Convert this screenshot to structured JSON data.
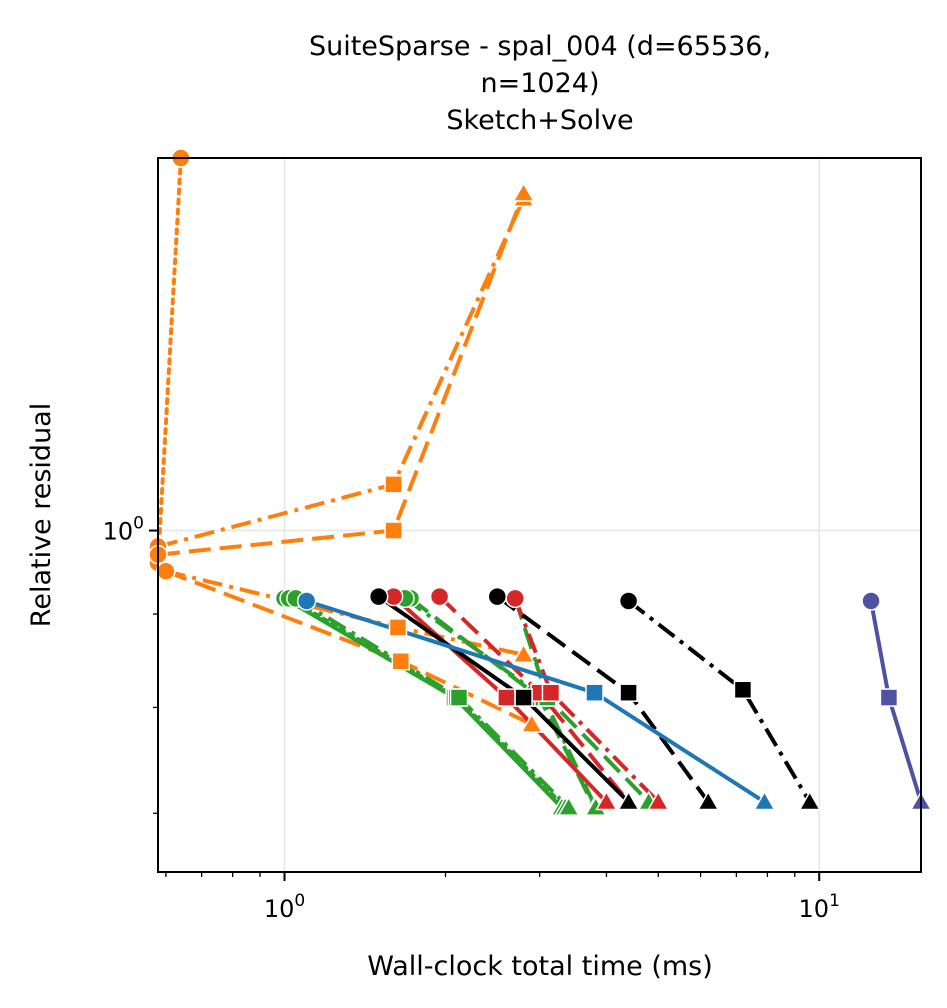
{
  "chart_data": {
    "type": "line",
    "title_lines": [
      "SuiteSparse - spal_004 (d=65536,",
      "n=1024)",
      "Sketch+Solve"
    ],
    "xlabel": "Wall-clock total time (ms)",
    "ylabel": "Relative residual",
    "x_scale": "log",
    "y_scale": "log",
    "xlim": [
      0.58,
      15.5
    ],
    "ylim": [
      0.65,
      1.6
    ],
    "xticks": [
      {
        "value": 1,
        "base": "10",
        "exp": "0"
      },
      {
        "value": 10,
        "base": "10",
        "exp": "1"
      }
    ],
    "yticks": [
      {
        "value": 1,
        "base": "10",
        "exp": "0"
      }
    ],
    "grid": true,
    "legend": "none",
    "colors": {
      "orange": "#ff7f0e",
      "green": "#2ca02c",
      "red": "#d62728",
      "black": "#000000",
      "blue": "#1f77b4",
      "purple": "#4e52a0"
    },
    "series": [
      {
        "color": "#ff7f0e",
        "dash": "dot",
        "points": [
          [
            0.58,
            0.96
          ],
          [
            0.64,
            1.6
          ]
        ],
        "markers": [
          "circle",
          "circle"
        ]
      },
      {
        "color": "#ff7f0e",
        "dash": "dashdot",
        "points": [
          [
            0.58,
            0.98
          ],
          [
            1.6,
            1.06
          ],
          [
            2.8,
            1.52
          ]
        ],
        "markers": [
          "circle",
          "square",
          "triangle"
        ]
      },
      {
        "color": "#ff7f0e",
        "dash": "dash",
        "points": [
          [
            0.58,
            0.97
          ],
          [
            1.6,
            1.0
          ],
          [
            2.8,
            1.53
          ]
        ],
        "markers": [
          "circle",
          "square",
          "triangle"
        ]
      },
      {
        "color": "#ff7f0e",
        "dash": "dashdot",
        "points": [
          [
            0.6,
            0.95
          ],
          [
            1.63,
            0.885
          ],
          [
            2.8,
            0.855
          ]
        ],
        "markers": [
          "circle",
          "square",
          "triangle"
        ]
      },
      {
        "color": "#ff7f0e",
        "dash": "dash",
        "points": [
          [
            0.6,
            0.95
          ],
          [
            1.65,
            0.848
          ],
          [
            2.9,
            0.783
          ]
        ],
        "markers": [
          "circle",
          "square",
          "triangle"
        ]
      },
      {
        "color": "#2ca02c",
        "dash": "solid",
        "points": [
          [
            1.0,
            0.918
          ],
          [
            2.08,
            0.81
          ],
          [
            3.3,
            0.705
          ]
        ],
        "markers": [
          "circle",
          "square",
          "triangle"
        ]
      },
      {
        "color": "#2ca02c",
        "dash": "dot",
        "points": [
          [
            1.02,
            0.918
          ],
          [
            2.1,
            0.81
          ],
          [
            3.35,
            0.705
          ]
        ],
        "markers": [
          "circle",
          "square",
          "triangle"
        ]
      },
      {
        "color": "#2ca02c",
        "dash": "dashdot",
        "points": [
          [
            1.05,
            0.918
          ],
          [
            2.12,
            0.81
          ],
          [
            3.4,
            0.705
          ]
        ],
        "markers": [
          "circle",
          "square",
          "triangle"
        ]
      },
      {
        "color": "#2ca02c",
        "dash": "dash",
        "points": [
          [
            1.72,
            0.918
          ],
          [
            3.0,
            0.81
          ],
          [
            3.8,
            0.705
          ]
        ],
        "markers": [
          "circle",
          "square",
          "triangle"
        ]
      },
      {
        "color": "#2ca02c",
        "dash": "dashdot",
        "points": [
          [
            1.68,
            0.918
          ],
          [
            3.05,
            0.81
          ],
          [
            3.82,
            0.705
          ]
        ],
        "markers": [
          "circle",
          "square",
          "triangle"
        ]
      },
      {
        "color": "#2ca02c",
        "dash": "dash",
        "points": [
          [
            2.7,
            0.918
          ],
          [
            3.1,
            0.81
          ],
          [
            4.8,
            0.71
          ]
        ],
        "markers": [
          "circle",
          "square",
          "triangle"
        ]
      },
      {
        "color": "#d62728",
        "dash": "solid",
        "points": [
          [
            1.6,
            0.92
          ],
          [
            2.6,
            0.81
          ],
          [
            4.0,
            0.71
          ]
        ],
        "markers": [
          "circle",
          "square",
          "triangle"
        ]
      },
      {
        "color": "#d62728",
        "dash": "dash",
        "points": [
          [
            1.95,
            0.92
          ],
          [
            3.0,
            0.815
          ],
          [
            4.4,
            0.71
          ]
        ],
        "markers": [
          "circle",
          "square",
          "triangle"
        ]
      },
      {
        "color": "#d62728",
        "dash": "dashdot",
        "points": [
          [
            2.7,
            0.918
          ],
          [
            3.15,
            0.815
          ],
          [
            5.0,
            0.71
          ]
        ],
        "markers": [
          "circle",
          "square",
          "triangle"
        ]
      },
      {
        "color": "#000000",
        "dash": "solid",
        "points": [
          [
            1.5,
            0.92
          ],
          [
            2.8,
            0.81
          ],
          [
            4.4,
            0.71
          ]
        ],
        "markers": [
          "circle",
          "square",
          "triangle"
        ]
      },
      {
        "color": "#000000",
        "dash": "dash",
        "points": [
          [
            2.5,
            0.92
          ],
          [
            4.4,
            0.815
          ],
          [
            6.2,
            0.71
          ]
        ],
        "markers": [
          "circle",
          "square",
          "triangle"
        ]
      },
      {
        "color": "#000000",
        "dash": "dashdot",
        "points": [
          [
            4.4,
            0.915
          ],
          [
            7.2,
            0.818
          ],
          [
            9.6,
            0.71
          ]
        ],
        "markers": [
          "circle",
          "square",
          "triangle"
        ]
      },
      {
        "color": "#1f77b4",
        "dash": "solid",
        "points": [
          [
            1.1,
            0.915
          ],
          [
            3.8,
            0.815
          ],
          [
            7.9,
            0.71
          ]
        ],
        "markers": [
          "circle",
          "square",
          "triangle"
        ]
      },
      {
        "color": "#4e52a0",
        "dash": "solid",
        "points": [
          [
            12.5,
            0.915
          ],
          [
            13.5,
            0.81
          ],
          [
            15.5,
            0.71
          ]
        ],
        "markers": [
          "circle",
          "square",
          "triangle"
        ]
      }
    ]
  }
}
